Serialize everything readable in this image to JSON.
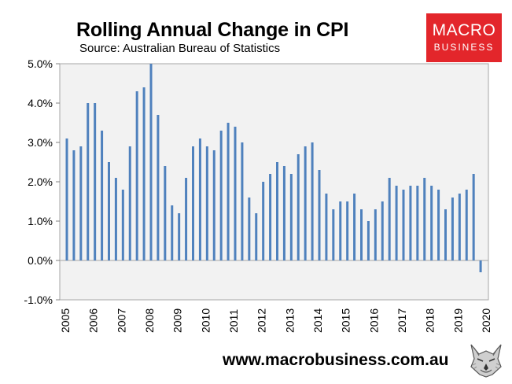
{
  "header": {
    "title": "Rolling Annual Change in CPI",
    "subtitle": "Source: Australian Bureau of Statistics"
  },
  "logo": {
    "line1": "MACRO",
    "line2": "BUSINESS",
    "color": "#e3262b"
  },
  "footer": {
    "url": "www.macrobusiness.com.au",
    "icon": "wolf-icon"
  },
  "chart_data": {
    "type": "bar",
    "title": "Rolling Annual Change in CPI",
    "xlabel": "",
    "ylabel": "",
    "ylim": [
      -1.0,
      5.0
    ],
    "y_ticks": [
      -1.0,
      0.0,
      1.0,
      2.0,
      3.0,
      4.0,
      5.0
    ],
    "y_tick_format": "percent_1dp",
    "x_tick_labels": [
      "2005",
      "2006",
      "2007",
      "2008",
      "2009",
      "2010",
      "2011",
      "2012",
      "2013",
      "2014",
      "2015",
      "2016",
      "2017",
      "2018",
      "2019",
      "2020"
    ],
    "grid": false,
    "plot_background": "#f2f2f2",
    "bar_color": "#4f81bd",
    "values": [
      3.1,
      2.8,
      2.9,
      4.0,
      4.0,
      3.3,
      2.5,
      2.1,
      1.8,
      2.9,
      4.3,
      4.4,
      5.0,
      3.7,
      2.4,
      1.4,
      1.2,
      2.1,
      2.9,
      3.1,
      2.9,
      2.8,
      3.3,
      3.5,
      3.4,
      3.0,
      1.6,
      1.2,
      2.0,
      2.2,
      2.5,
      2.4,
      2.2,
      2.7,
      2.9,
      3.0,
      2.3,
      1.7,
      1.3,
      1.5,
      1.5,
      1.7,
      1.3,
      1.0,
      1.3,
      1.5,
      2.1,
      1.9,
      1.8,
      1.9,
      1.9,
      2.1,
      1.9,
      1.8,
      1.3,
      1.6,
      1.7,
      1.8,
      2.2,
      -0.3
    ]
  }
}
